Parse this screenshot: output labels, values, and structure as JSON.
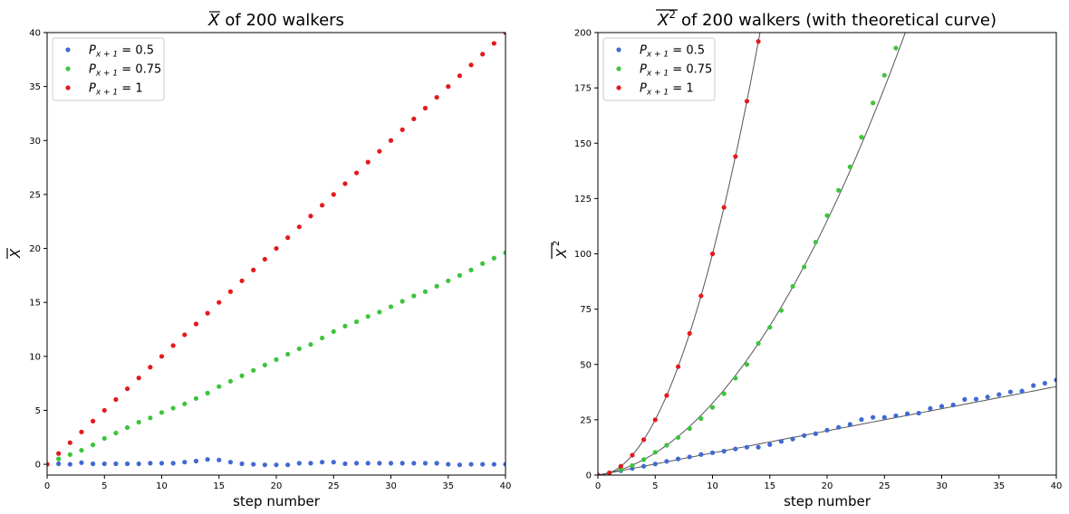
{
  "chart_data": [
    {
      "type": "scatter",
      "title": "X of 200 walkers",
      "title_text": "of 200 walkers",
      "xlabel": "step number",
      "ylabel": "X",
      "xlim": [
        0,
        40
      ],
      "ylim": [
        -1,
        40
      ],
      "xticks": [
        0,
        5,
        10,
        15,
        20,
        25,
        30,
        35,
        40
      ],
      "yticks": [
        0,
        5,
        10,
        15,
        20,
        25,
        30,
        35,
        40
      ],
      "grid": false,
      "legend_position": "top-left",
      "series": [
        {
          "name": "P_{x+1}=0.5",
          "legend_base": "P",
          "legend_sub": "x + 1",
          "legend_rest": " = 0.5",
          "color": "#4169d2",
          "x": [
            0,
            1,
            2,
            3,
            4,
            5,
            6,
            7,
            8,
            9,
            10,
            11,
            12,
            13,
            14,
            15,
            16,
            17,
            18,
            19,
            20,
            21,
            22,
            23,
            24,
            25,
            26,
            27,
            28,
            29,
            30,
            31,
            32,
            33,
            34,
            35,
            36,
            37,
            38,
            39,
            40
          ],
          "y": [
            0,
            0.05,
            0.0,
            0.15,
            0.05,
            0.05,
            0.05,
            0.05,
            0.05,
            0.1,
            0.1,
            0.1,
            0.2,
            0.3,
            0.45,
            0.4,
            0.2,
            0.05,
            0.0,
            -0.05,
            -0.05,
            -0.05,
            0.1,
            0.1,
            0.2,
            0.2,
            0.05,
            0.1,
            0.1,
            0.1,
            0.1,
            0.1,
            0.1,
            0.1,
            0.1,
            0.0,
            -0.05,
            0.0,
            0.0,
            0.0,
            0.0
          ]
        },
        {
          "name": "P_{x+1}=0.75",
          "legend_base": "P",
          "legend_sub": "x + 1",
          "legend_rest": " = 0.75",
          "color": "#3cc43c",
          "x": [
            0,
            1,
            2,
            3,
            4,
            5,
            6,
            7,
            8,
            9,
            10,
            11,
            12,
            13,
            14,
            15,
            16,
            17,
            18,
            19,
            20,
            21,
            22,
            23,
            24,
            25,
            26,
            27,
            28,
            29,
            30,
            31,
            32,
            33,
            34,
            35,
            36,
            37,
            38,
            39,
            40
          ],
          "y": [
            0,
            0.5,
            0.9,
            1.3,
            1.8,
            2.4,
            2.9,
            3.4,
            3.9,
            4.3,
            4.8,
            5.2,
            5.6,
            6.1,
            6.6,
            7.2,
            7.7,
            8.2,
            8.7,
            9.2,
            9.7,
            10.2,
            10.7,
            11.1,
            11.7,
            12.3,
            12.8,
            13.2,
            13.7,
            14.1,
            14.6,
            15.1,
            15.6,
            16.0,
            16.5,
            17.0,
            17.5,
            18.0,
            18.6,
            19.1,
            19.6
          ]
        },
        {
          "name": "P_{x+1}=1",
          "legend_base": "P",
          "legend_sub": "x + 1",
          "legend_rest": " = 1",
          "color": "#e41a1c",
          "x": [
            0,
            1,
            2,
            3,
            4,
            5,
            6,
            7,
            8,
            9,
            10,
            11,
            12,
            13,
            14,
            15,
            16,
            17,
            18,
            19,
            20,
            21,
            22,
            23,
            24,
            25,
            26,
            27,
            28,
            29,
            30,
            31,
            32,
            33,
            34,
            35,
            36,
            37,
            38,
            39,
            40
          ],
          "y": [
            0,
            1,
            2,
            3,
            4,
            5,
            6,
            7,
            8,
            9,
            10,
            11,
            12,
            13,
            14,
            15,
            16,
            17,
            18,
            19,
            20,
            21,
            22,
            23,
            24,
            25,
            26,
            27,
            28,
            29,
            30,
            31,
            32,
            33,
            34,
            35,
            36,
            37,
            38,
            39,
            40
          ]
        }
      ]
    },
    {
      "type": "scatter",
      "title": "X^2 of 200 walkers (with theoretical curve)",
      "title_text": "of 200 walkers (with theoretical curve)",
      "xlabel": "step number",
      "ylabel": "X^2",
      "xlim": [
        0,
        40
      ],
      "ylim": [
        0,
        200
      ],
      "xticks": [
        0,
        5,
        10,
        15,
        20,
        25,
        30,
        35,
        40
      ],
      "yticks": [
        0,
        25,
        50,
        75,
        100,
        125,
        150,
        175,
        200
      ],
      "grid": false,
      "legend_position": "top-left",
      "series": [
        {
          "name": "P_{x+1}=0.5",
          "legend_base": "P",
          "legend_sub": "x + 1",
          "legend_rest": " = 0.5",
          "color": "#4169d2",
          "x": [
            0,
            1,
            2,
            3,
            4,
            5,
            6,
            7,
            8,
            9,
            10,
            11,
            12,
            13,
            14,
            15,
            16,
            17,
            18,
            19,
            20,
            21,
            22,
            23,
            24,
            25,
            26,
            27,
            28,
            29,
            30,
            31,
            32,
            33,
            34,
            35,
            36,
            37,
            38,
            39,
            40
          ],
          "y": [
            0,
            1,
            2,
            3,
            4,
            5,
            6.2,
            7.3,
            8.2,
            9.3,
            10.1,
            10.8,
            11.8,
            12.6,
            12.6,
            13.8,
            15.2,
            16.3,
            17.9,
            18.7,
            20.3,
            21.6,
            22.9,
            25.1,
            26.1,
            26.1,
            26.8,
            27.7,
            28,
            30.1,
            31.1,
            31.7,
            34.2,
            34.3,
            35.3,
            36.4,
            37.6,
            38,
            40.5,
            41.5,
            43
          ]
        },
        {
          "name": "P_{x+1}=0.75",
          "legend_base": "P",
          "legend_sub": "x + 1",
          "legend_rest": " = 0.75",
          "color": "#3cc43c",
          "x": [
            0,
            1,
            2,
            3,
            4,
            5,
            6,
            7,
            8,
            9,
            10,
            11,
            12,
            13,
            14,
            15,
            16,
            17,
            18,
            19,
            20,
            21,
            22,
            23,
            24,
            25,
            26
          ],
          "y": [
            0,
            1,
            2.5,
            4.3,
            7,
            10.3,
            13.5,
            17,
            21,
            25.5,
            30.6,
            36.8,
            43.8,
            50,
            59.5,
            66.8,
            74.4,
            85.3,
            94.1,
            105.3,
            117.3,
            128.7,
            139.3,
            152.7,
            168.2,
            180.7,
            193
          ]
        },
        {
          "name": "P_{x+1}=1",
          "legend_base": "P",
          "legend_sub": "x + 1",
          "legend_rest": " = 1",
          "color": "#e41a1c",
          "x": [
            0,
            1,
            2,
            3,
            4,
            5,
            6,
            7,
            8,
            9,
            10,
            11,
            12,
            13,
            14
          ],
          "y": [
            0,
            1,
            4,
            9,
            16,
            25,
            36,
            49,
            64,
            81,
            100,
            121,
            144,
            169,
            196
          ]
        }
      ],
      "theoretical_curves": [
        {
          "p": 0.5,
          "color": "#555555"
        },
        {
          "p": 0.75,
          "color": "#555555"
        },
        {
          "p": 1,
          "color": "#555555"
        }
      ]
    }
  ]
}
